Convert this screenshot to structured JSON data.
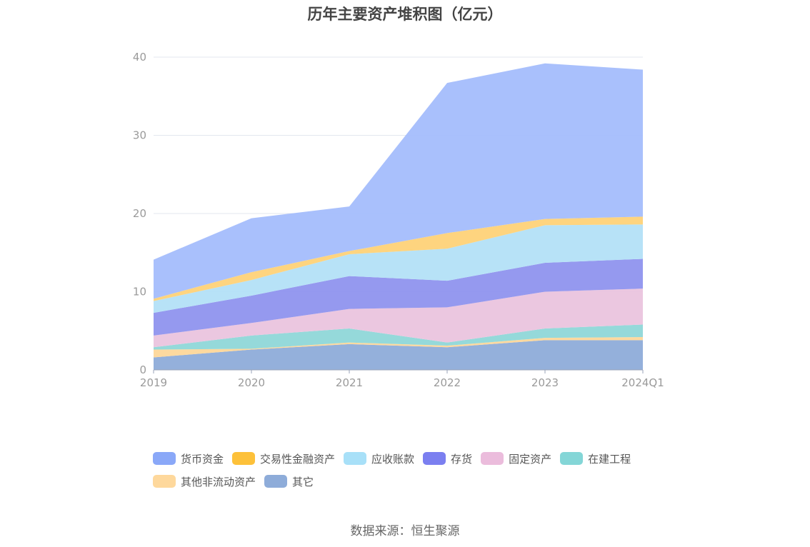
{
  "chart_data": {
    "type": "area",
    "stacked": true,
    "title": "历年主要资产堆积图（亿元）",
    "categories": [
      "2019",
      "2020",
      "2021",
      "2022",
      "2023",
      "2024Q1"
    ],
    "ylim": [
      0,
      40
    ],
    "yticks": [
      "0",
      "10",
      "20",
      "30",
      "40"
    ],
    "series": [
      {
        "name": "其它",
        "color": "#8eacd9",
        "values": [
          1.6,
          2.6,
          3.3,
          2.9,
          3.8,
          3.8
        ]
      },
      {
        "name": "其他非流动资产",
        "color": "#fdd79a",
        "values": [
          1.0,
          0.1,
          0.2,
          0.2,
          0.3,
          0.4
        ]
      },
      {
        "name": "在建工程",
        "color": "#8fd7d8",
        "values": [
          0.3,
          1.7,
          1.8,
          0.4,
          1.2,
          1.6
        ]
      },
      {
        "name": "固定资产",
        "color": "#eac4de",
        "values": [
          1.5,
          1.6,
          2.5,
          4.5,
          4.7,
          4.6
        ]
      },
      {
        "name": "存货",
        "color": "#8f93ee",
        "values": [
          2.9,
          3.5,
          4.2,
          3.4,
          3.7,
          3.8
        ]
      },
      {
        "name": "应收账款",
        "color": "#b3e0f7",
        "values": [
          1.5,
          2.0,
          2.8,
          4.1,
          4.8,
          4.4
        ]
      },
      {
        "name": "交易性金融资产",
        "color": "#fed278",
        "values": [
          0.3,
          1.0,
          0.4,
          2.0,
          0.8,
          1.0
        ]
      },
      {
        "name": "货币资金",
        "color": "#a4bdfc",
        "values": [
          5.0,
          6.9,
          5.7,
          19.2,
          19.9,
          18.8
        ]
      }
    ],
    "legend": [
      {
        "name": "货币资金",
        "color": "#8aa8f8"
      },
      {
        "name": "交易性金融资产",
        "color": "#fdc13a"
      },
      {
        "name": "应收账款",
        "color": "#a8e0f8"
      },
      {
        "name": "存货",
        "color": "#7b7ff0"
      },
      {
        "name": "固定资产",
        "color": "#ebbcdc"
      },
      {
        "name": "在建工程",
        "color": "#84d6d7"
      },
      {
        "name": "其他非流动资产",
        "color": "#fed89c"
      },
      {
        "name": "其它",
        "color": "#8eacd9"
      }
    ]
  },
  "source": "数据来源：恒生聚源"
}
